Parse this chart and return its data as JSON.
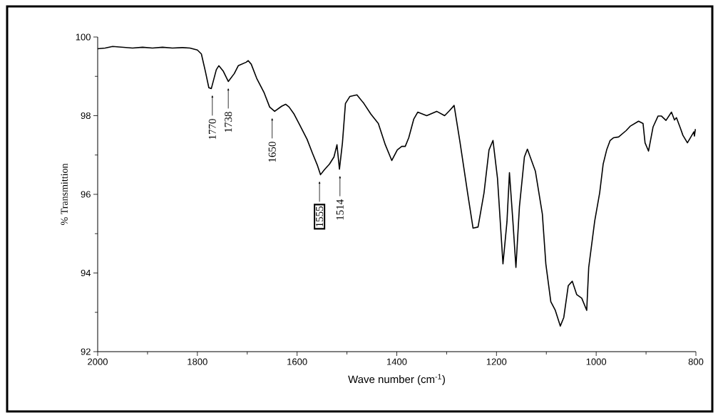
{
  "chart_data": {
    "type": "line",
    "xlabel": "Wave number (cm$^{-1}$)",
    "ylabel": "% Transmittion",
    "xlim": [
      2000,
      800
    ],
    "ylim": [
      92,
      100
    ],
    "xticks": [
      2000,
      1800,
      1600,
      1400,
      1200,
      1000,
      800
    ],
    "yticks": [
      92,
      94,
      96,
      98,
      100
    ],
    "x": [
      2000,
      1985,
      1970,
      1950,
      1930,
      1910,
      1890,
      1870,
      1850,
      1830,
      1815,
      1800,
      1792,
      1784,
      1777,
      1772,
      1762,
      1757,
      1748,
      1738,
      1726,
      1718,
      1702,
      1698,
      1692,
      1681,
      1666,
      1655,
      1645,
      1631,
      1623,
      1616,
      1606,
      1595,
      1580,
      1569,
      1559,
      1553,
      1545,
      1535,
      1526,
      1520,
      1515,
      1509,
      1503,
      1494,
      1480,
      1466,
      1452,
      1437,
      1423,
      1410,
      1399,
      1390,
      1383,
      1376,
      1366,
      1358,
      1340,
      1320,
      1304,
      1294,
      1285,
      1273,
      1258,
      1247,
      1237,
      1225,
      1215,
      1207,
      1198,
      1187,
      1179,
      1174,
      1167,
      1161,
      1154,
      1144,
      1138,
      1122,
      1108,
      1101,
      1091,
      1082,
      1072,
      1065,
      1056,
      1048,
      1039,
      1029,
      1019,
      1015,
      1003,
      993,
      986,
      979,
      972,
      965,
      955,
      940,
      932,
      915,
      906,
      902,
      895,
      886,
      876,
      869,
      860,
      849,
      843,
      839,
      831,
      826,
      817,
      804,
      803,
      801
    ],
    "series": [
      {
        "color": "#000000",
        "values": [
          99.7,
          99.72,
          99.76,
          99.74,
          99.72,
          99.74,
          99.72,
          99.74,
          99.72,
          99.73,
          99.72,
          99.67,
          99.57,
          99.13,
          98.71,
          98.69,
          99.17,
          99.27,
          99.13,
          98.87,
          99.07,
          99.27,
          99.36,
          99.4,
          99.31,
          98.95,
          98.58,
          98.22,
          98.11,
          98.24,
          98.29,
          98.22,
          98.04,
          97.77,
          97.4,
          97.04,
          96.73,
          96.5,
          96.63,
          96.77,
          96.95,
          97.26,
          96.64,
          97.31,
          98.31,
          98.49,
          98.53,
          98.31,
          98.04,
          97.8,
          97.26,
          96.86,
          97.13,
          97.22,
          97.22,
          97.44,
          97.91,
          98.09,
          98.0,
          98.11,
          98.0,
          98.13,
          98.26,
          97.31,
          96.04,
          95.14,
          95.17,
          96.04,
          97.13,
          97.37,
          96.41,
          94.23,
          95.3,
          96.55,
          95.3,
          94.14,
          95.68,
          96.95,
          97.15,
          96.59,
          95.5,
          94.23,
          93.27,
          93.05,
          92.65,
          92.87,
          93.68,
          93.79,
          93.45,
          93.36,
          93.05,
          94.14,
          95.32,
          96.04,
          96.77,
          97.13,
          97.37,
          97.44,
          97.46,
          97.62,
          97.73,
          97.86,
          97.8,
          97.31,
          97.1,
          97.71,
          97.99,
          97.99,
          97.88,
          98.09,
          97.89,
          97.95,
          97.68,
          97.5,
          97.31,
          97.59,
          97.48,
          97.66
        ]
      }
    ],
    "annotations": [
      {
        "text": "1770",
        "x": 1770,
        "y": 98.69
      },
      {
        "text": "1738",
        "x": 1738,
        "y": 98.87
      },
      {
        "text": "1650",
        "x": 1650,
        "y": 98.11
      },
      {
        "text": "1555",
        "x": 1555,
        "y": 96.5
      },
      {
        "text": "1514",
        "x": 1514,
        "y": 96.64
      }
    ]
  }
}
